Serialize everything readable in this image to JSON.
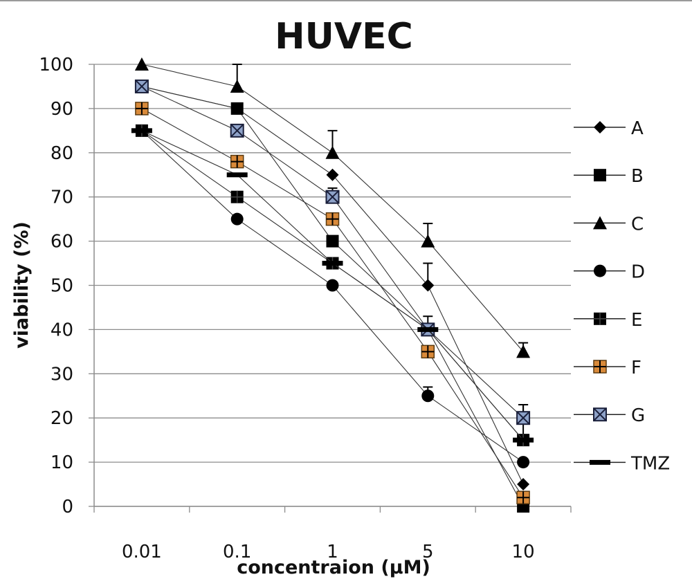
{
  "chart_data": {
    "type": "line",
    "title": "HUVEC",
    "xlabel": "concentraion (µM)",
    "ylabel": "viability (%)",
    "categories": [
      "0.01",
      "0.1",
      "1",
      "5",
      "10"
    ],
    "ylim": [
      0,
      100
    ],
    "yticks": [
      0,
      10,
      20,
      30,
      40,
      50,
      60,
      70,
      80,
      90,
      100
    ],
    "grid": true,
    "legend_position": "right",
    "series": [
      {
        "name": "A",
        "marker": "diamond",
        "values": [
          95,
          90,
          75,
          50,
          5
        ],
        "errors": [
          0,
          0,
          0,
          5,
          0
        ]
      },
      {
        "name": "B",
        "marker": "square",
        "values": [
          95,
          90,
          60,
          40,
          0
        ],
        "errors": [
          0,
          0,
          0,
          0,
          0
        ]
      },
      {
        "name": "C",
        "marker": "triangle",
        "values": [
          100,
          95,
          80,
          60,
          35
        ],
        "errors": [
          0,
          5,
          5,
          4,
          2
        ]
      },
      {
        "name": "D",
        "marker": "circle",
        "values": [
          85,
          65,
          50,
          25,
          10
        ],
        "errors": [
          0,
          0,
          0,
          2,
          0
        ]
      },
      {
        "name": "E",
        "marker": "star-square",
        "values": [
          85,
          70,
          55,
          40,
          15
        ],
        "errors": [
          0,
          0,
          0,
          3,
          8
        ]
      },
      {
        "name": "F",
        "marker": "cross-square-orange",
        "values": [
          90,
          78,
          65,
          35,
          2
        ],
        "errors": [
          0,
          0,
          0,
          0,
          0
        ]
      },
      {
        "name": "G",
        "marker": "x-square-blue",
        "values": [
          95,
          85,
          70,
          40,
          20
        ],
        "errors": [
          0,
          0,
          2,
          0,
          3
        ]
      },
      {
        "name": "TMZ",
        "marker": "dash",
        "values": [
          85,
          75,
          55,
          40,
          15
        ],
        "errors": [
          0,
          0,
          0,
          0,
          0
        ]
      }
    ]
  }
}
